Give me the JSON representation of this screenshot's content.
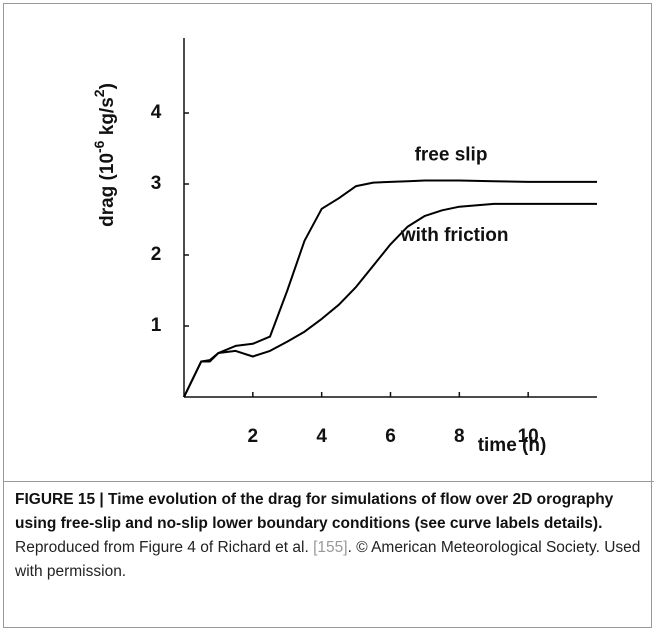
{
  "chart_data": {
    "type": "line",
    "y_label_parts": [
      "drag (10",
      "-6",
      " kg/s",
      "2",
      ")"
    ],
    "x_label": "time (h)",
    "x": [
      0,
      0.5,
      0.75,
      1,
      1.5,
      2,
      2.5,
      3,
      3.5,
      4,
      4.5,
      5,
      5.5,
      6,
      6.5,
      7,
      7.5,
      8,
      9,
      10,
      11,
      12
    ],
    "series": [
      {
        "name": "free slip",
        "color": "#000000",
        "values": [
          0,
          0.5,
          0.5,
          0.62,
          0.72,
          0.75,
          0.85,
          1.5,
          2.2,
          2.65,
          2.8,
          2.97,
          3.02,
          3.03,
          3.04,
          3.05,
          3.05,
          3.05,
          3.04,
          3.03,
          3.03,
          3.03
        ]
      },
      {
        "name": "with friction",
        "color": "#000000",
        "values": [
          0,
          0.5,
          0.52,
          0.62,
          0.65,
          0.57,
          0.65,
          0.78,
          0.92,
          1.1,
          1.3,
          1.55,
          1.85,
          2.15,
          2.4,
          2.55,
          2.63,
          2.68,
          2.72,
          2.72,
          2.72,
          2.72
        ]
      }
    ],
    "xlim": [
      0,
      12
    ],
    "xticks": [
      2,
      4,
      6,
      8,
      10
    ],
    "ylim": [
      0,
      5
    ],
    "yticks": [
      1,
      2,
      3,
      4
    ]
  },
  "caption": {
    "bold": "FIGURE 15 | Time evolution of the drag for simulations of flow over 2D orography using free-slip and no-slip lower boundary conditions (see curve labels details).",
    "text": " Reproduced from Figure 4 of Richard et al. ",
    "ref": "[155]",
    "tail": ". © American Meteorological Society. Used with permission."
  }
}
